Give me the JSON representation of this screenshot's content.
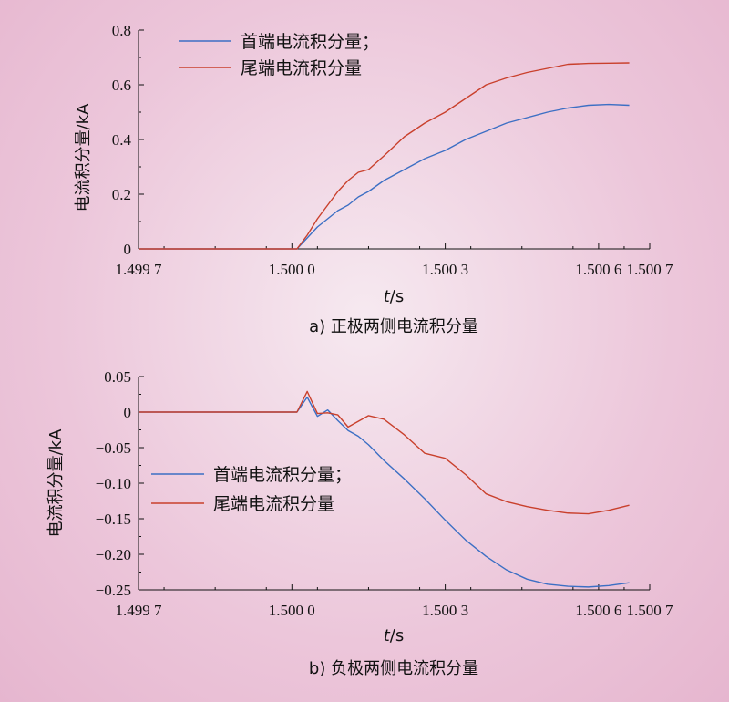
{
  "colors": {
    "first": "#3c6fc4",
    "last": "#c9402c",
    "axis": "#111111"
  },
  "chart_data": [
    {
      "type": "line",
      "caption": "a) 正极两侧电流积分量",
      "xlabel_italic": "t",
      "xlabel_unit": "/s",
      "ylabel": "电流积分量/kA",
      "xlim": [
        1.4997,
        1.5007
      ],
      "ylim": [
        0,
        0.8
      ],
      "x_ticks": [
        1.4997,
        1.5,
        1.5003,
        1.5006,
        1.5007
      ],
      "x_tick_labels": [
        "1.499 7",
        "1.500 0",
        "1.500 3",
        "1.500 6",
        "1.500 7"
      ],
      "y_ticks": [
        0,
        0.2,
        0.4,
        0.6,
        0.8
      ],
      "y_tick_labels": [
        "0",
        "0.2",
        "0.4",
        "0.6",
        "0.8"
      ],
      "legend_position": "top-left",
      "series": [
        {
          "name": "首端电流积分量；",
          "color_key": "first",
          "x": [
            1.4997,
            1.50001,
            1.50003,
            1.50005,
            1.50007,
            1.50009,
            1.50011,
            1.50013,
            1.50015,
            1.50018,
            1.50022,
            1.50026,
            1.5003,
            1.50034,
            1.50038,
            1.50042,
            1.50046,
            1.5005,
            1.50054,
            1.50058,
            1.50062,
            1.50066
          ],
          "y": [
            0,
            0.0,
            0.04,
            0.08,
            0.11,
            0.14,
            0.16,
            0.19,
            0.21,
            0.25,
            0.29,
            0.33,
            0.36,
            0.4,
            0.43,
            0.46,
            0.48,
            0.5,
            0.515,
            0.525,
            0.528,
            0.525
          ]
        },
        {
          "name": "尾端电流积分量",
          "color_key": "last",
          "x": [
            1.4997,
            1.50001,
            1.50003,
            1.50005,
            1.50007,
            1.50009,
            1.50011,
            1.50013,
            1.50015,
            1.50018,
            1.50022,
            1.50026,
            1.5003,
            1.50034,
            1.50038,
            1.50042,
            1.50046,
            1.5005,
            1.50054,
            1.50058,
            1.50062,
            1.50066
          ],
          "y": [
            0,
            0.0,
            0.05,
            0.11,
            0.16,
            0.21,
            0.25,
            0.28,
            0.29,
            0.34,
            0.41,
            0.46,
            0.5,
            0.55,
            0.6,
            0.625,
            0.645,
            0.66,
            0.675,
            0.678,
            0.679,
            0.68
          ]
        }
      ]
    },
    {
      "type": "line",
      "caption": "b) 负极两侧电流积分量",
      "xlabel_italic": "t",
      "xlabel_unit": "/s",
      "ylabel": "电流积分量/kA",
      "xlim": [
        1.4997,
        1.5007
      ],
      "ylim": [
        -0.25,
        0.05
      ],
      "x_ticks": [
        1.4997,
        1.5,
        1.5003,
        1.5006,
        1.5007
      ],
      "x_tick_labels": [
        "1.499 7",
        "1.500 0",
        "1.500 3",
        "1.500 6",
        "1.500 7"
      ],
      "y_ticks": [
        0.05,
        0,
        -0.05,
        -0.1,
        -0.15,
        -0.2,
        -0.25
      ],
      "y_tick_labels": [
        "0.05",
        "0",
        "−0.05",
        "−0.10",
        "−0.15",
        "−0.20",
        "−0.25"
      ],
      "legend_position": "center-left",
      "series": [
        {
          "name": "首端电流积分量；",
          "color_key": "first",
          "x": [
            1.4997,
            1.50001,
            1.50003,
            1.50005,
            1.50007,
            1.50009,
            1.50011,
            1.50013,
            1.50015,
            1.50018,
            1.50022,
            1.50026,
            1.5003,
            1.50034,
            1.50038,
            1.50042,
            1.50046,
            1.5005,
            1.50054,
            1.50058,
            1.50062,
            1.50066
          ],
          "y": [
            0,
            0.0,
            0.021,
            -0.006,
            0.003,
            -0.012,
            -0.026,
            -0.034,
            -0.046,
            -0.068,
            -0.094,
            -0.122,
            -0.152,
            -0.18,
            -0.203,
            -0.222,
            -0.235,
            -0.242,
            -0.245,
            -0.246,
            -0.244,
            -0.24
          ]
        },
        {
          "name": "尾端电流积分量",
          "color_key": "last",
          "x": [
            1.4997,
            1.50001,
            1.50003,
            1.50005,
            1.50007,
            1.50009,
            1.50011,
            1.50013,
            1.50015,
            1.50018,
            1.50022,
            1.50026,
            1.5003,
            1.50034,
            1.50038,
            1.50042,
            1.50046,
            1.5005,
            1.50054,
            1.50058,
            1.50062,
            1.50066
          ],
          "y": [
            0,
            0.0,
            0.029,
            -0.002,
            -0.001,
            -0.004,
            -0.021,
            -0.013,
            -0.005,
            -0.01,
            -0.032,
            -0.058,
            -0.065,
            -0.088,
            -0.115,
            -0.126,
            -0.133,
            -0.138,
            -0.142,
            -0.143,
            -0.138,
            -0.131
          ]
        }
      ]
    }
  ]
}
